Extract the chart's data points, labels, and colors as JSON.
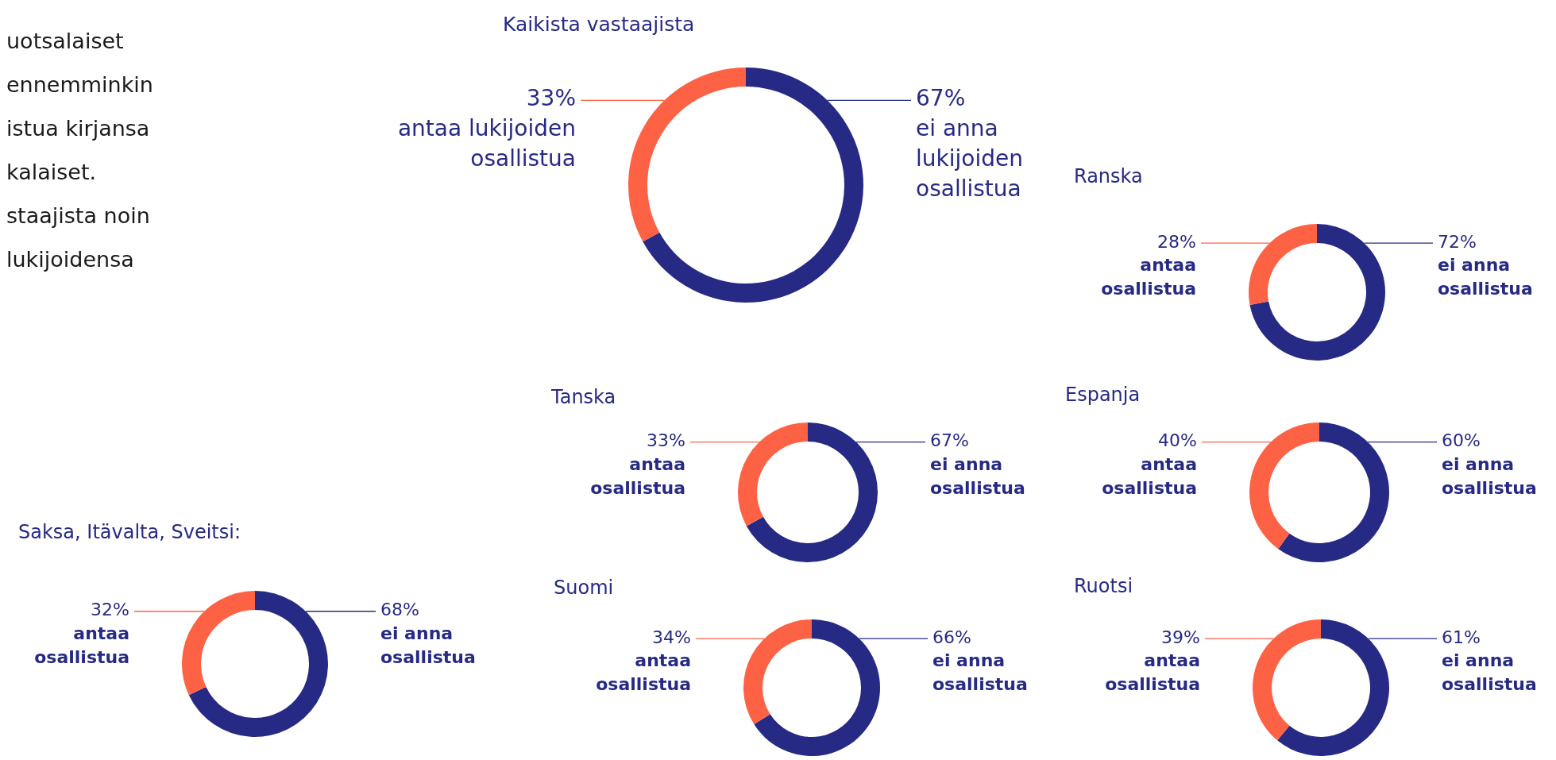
{
  "chart_data": [
    {
      "type": "donut",
      "title": "Kaikista vastaajista",
      "categories": [
        "ei anna lukijoiden osallistua",
        "antaa lukijoiden osallistua"
      ],
      "values": [
        67,
        33
      ],
      "colors": [
        "#262a84",
        "#fd6244"
      ],
      "value_labels": [
        "67%",
        "33%"
      ],
      "annotations": [
        "uotsalaiset",
        "ennemminkin",
        "istua kirjansa",
        "kalaiset.",
        "staajista noin",
        "lukijoidensa"
      ]
    },
    {
      "type": "donut",
      "title": "Ranska",
      "categories": [
        "ei anna osallistua",
        "antaa osallistua"
      ],
      "values": [
        72,
        28
      ],
      "colors": [
        "#262a84",
        "#fd6244"
      ],
      "value_labels": [
        "72%",
        "28%"
      ]
    },
    {
      "type": "donut",
      "title": "Tanska",
      "categories": [
        "ei anna osallistua",
        "antaa osallistua"
      ],
      "values": [
        67,
        33
      ],
      "colors": [
        "#262a84",
        "#fd6244"
      ],
      "value_labels": [
        "67%",
        "33%"
      ]
    },
    {
      "type": "donut",
      "title": "Espanja",
      "categories": [
        "ei anna osallistua",
        "antaa osallistua"
      ],
      "values": [
        60,
        40
      ],
      "colors": [
        "#262a84",
        "#fd6244"
      ],
      "value_labels": [
        "60%",
        "40%"
      ]
    },
    {
      "type": "donut",
      "title": "Saksa, Itävalta, Sveitsi:",
      "categories": [
        "ei anna osallistua",
        "antaa osallistua"
      ],
      "values": [
        68,
        32
      ],
      "colors": [
        "#262a84",
        "#fd6244"
      ],
      "value_labels": [
        "68%",
        "32%"
      ]
    },
    {
      "type": "donut",
      "title": "Suomi",
      "categories": [
        "ei anna osallistua",
        "antaa osallistua"
      ],
      "values": [
        66,
        34
      ],
      "colors": [
        "#262a84",
        "#fd6244"
      ],
      "value_labels": [
        "66%",
        "34%"
      ]
    },
    {
      "type": "donut",
      "title": "Ruotsi",
      "categories": [
        "ei anna osallistua",
        "antaa osallistua"
      ],
      "values": [
        61,
        39
      ],
      "colors": [
        "#262a84",
        "#fd6244"
      ],
      "value_labels": [
        "61%",
        "39%"
      ]
    }
  ]
}
